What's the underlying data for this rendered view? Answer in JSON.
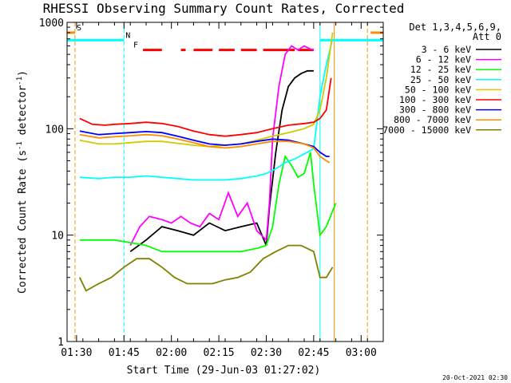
{
  "chart_data": {
    "type": "line",
    "title": "RHESSI Observing Summary Count Rates, Corrected",
    "xlabel": "Start Time (29-Jun-03 01:27:02)",
    "ylabel_main": "Corrected Count Rate (s",
    "ylabel_sup1": "-1",
    "ylabel_mid": " detector",
    "ylabel_sup2": "-1",
    "ylabel_end": ")",
    "y_scale": "log",
    "ylim": [
      1,
      1000
    ],
    "xlim_minutes": [
      0,
      100
    ],
    "x_ticks": [
      {
        "label": "01:30",
        "min": 3
      },
      {
        "label": "01:45",
        "min": 18
      },
      {
        "label": "02:00",
        "min": 33
      },
      {
        "label": "02:15",
        "min": 48
      },
      {
        "label": "02:30",
        "min": 63
      },
      {
        "label": "02:45",
        "min": 78
      },
      {
        "label": "03:00",
        "min": 93
      }
    ],
    "y_ticks": [
      {
        "label": "1",
        "value": 1
      },
      {
        "label": "10",
        "value": 10
      },
      {
        "label": "100",
        "value": 100
      },
      {
        "label": "1000",
        "value": 1000
      }
    ],
    "legend_header": [
      "Det 1,3,4,5,6,9,",
      "Att 0"
    ],
    "legend_position": "right",
    "series": [
      {
        "name": "3 - 6 keV",
        "color": "#000000",
        "points": [
          [
            20,
            7
          ],
          [
            25,
            9
          ],
          [
            30,
            12
          ],
          [
            35,
            11
          ],
          [
            40,
            10
          ],
          [
            45,
            13
          ],
          [
            50,
            11
          ],
          [
            55,
            12
          ],
          [
            60,
            13
          ],
          [
            63,
            8
          ],
          [
            64,
            18
          ],
          [
            66,
            60
          ],
          [
            68,
            150
          ],
          [
            70,
            250
          ],
          [
            72,
            300
          ],
          [
            74,
            330
          ],
          [
            76,
            350
          ],
          [
            78,
            350
          ]
        ]
      },
      {
        "name": "6 - 12 keV",
        "color": "#ff00ff",
        "points": [
          [
            20,
            8
          ],
          [
            23,
            12
          ],
          [
            26,
            15
          ],
          [
            30,
            14
          ],
          [
            33,
            13
          ],
          [
            36,
            15
          ],
          [
            39,
            13
          ],
          [
            42,
            12
          ],
          [
            45,
            16
          ],
          [
            48,
            14
          ],
          [
            51,
            25
          ],
          [
            54,
            15
          ],
          [
            57,
            20
          ],
          [
            60,
            11
          ],
          [
            63,
            9
          ],
          [
            64,
            20
          ],
          [
            65,
            80
          ],
          [
            67,
            250
          ],
          [
            69,
            500
          ],
          [
            71,
            600
          ],
          [
            73,
            550
          ],
          [
            75,
            600
          ],
          [
            77,
            560
          ],
          [
            78,
            550
          ]
        ]
      },
      {
        "name": "12 - 25 keV",
        "color": "#00ff00",
        "points": [
          [
            4,
            9
          ],
          [
            10,
            9
          ],
          [
            15,
            9
          ],
          [
            20,
            8.5
          ],
          [
            25,
            8
          ],
          [
            30,
            7
          ],
          [
            35,
            7
          ],
          [
            40,
            7
          ],
          [
            45,
            7
          ],
          [
            50,
            7
          ],
          [
            55,
            7
          ],
          [
            60,
            7.5
          ],
          [
            63,
            8
          ],
          [
            65,
            12
          ],
          [
            67,
            30
          ],
          [
            69,
            55
          ],
          [
            71,
            45
          ],
          [
            73,
            35
          ],
          [
            75,
            38
          ],
          [
            77,
            60
          ],
          [
            78,
            30
          ],
          [
            80,
            10
          ],
          [
            82,
            12
          ],
          [
            85,
            20
          ]
        ]
      },
      {
        "name": "25 - 50 keV",
        "color": "#00ffff",
        "points": [
          [
            4,
            35
          ],
          [
            10,
            34
          ],
          [
            15,
            35
          ],
          [
            20,
            35
          ],
          [
            25,
            36
          ],
          [
            30,
            35
          ],
          [
            35,
            34
          ],
          [
            40,
            33
          ],
          [
            45,
            33
          ],
          [
            50,
            33
          ],
          [
            55,
            34
          ],
          [
            60,
            36
          ],
          [
            63,
            38
          ],
          [
            66,
            42
          ],
          [
            69,
            48
          ],
          [
            72,
            52
          ],
          [
            75,
            58
          ],
          [
            78,
            65
          ],
          [
            80,
            200
          ],
          [
            82,
            400
          ],
          [
            84,
            700
          ]
        ]
      },
      {
        "name": "50 - 100 keV",
        "color": "#d4c800",
        "points": [
          [
            4,
            78
          ],
          [
            10,
            72
          ],
          [
            15,
            72
          ],
          [
            20,
            74
          ],
          [
            25,
            76
          ],
          [
            30,
            76
          ],
          [
            35,
            73
          ],
          [
            40,
            70
          ],
          [
            45,
            68
          ],
          [
            50,
            70
          ],
          [
            55,
            72
          ],
          [
            60,
            78
          ],
          [
            65,
            85
          ],
          [
            70,
            92
          ],
          [
            75,
            100
          ],
          [
            78,
            110
          ],
          [
            80,
            150
          ],
          [
            82,
            300
          ],
          [
            84,
            800
          ]
        ]
      },
      {
        "name": "100 - 300 keV",
        "color": "#ff0000",
        "points": [
          [
            4,
            125
          ],
          [
            8,
            110
          ],
          [
            12,
            108
          ],
          [
            15,
            110
          ],
          [
            20,
            112
          ],
          [
            25,
            115
          ],
          [
            30,
            112
          ],
          [
            35,
            105
          ],
          [
            40,
            95
          ],
          [
            45,
            88
          ],
          [
            50,
            85
          ],
          [
            55,
            88
          ],
          [
            60,
            92
          ],
          [
            65,
            100
          ],
          [
            70,
            108
          ],
          [
            75,
            112
          ],
          [
            78,
            115
          ],
          [
            80,
            125
          ],
          [
            82,
            150
          ],
          [
            83.5,
            300
          ]
        ]
      },
      {
        "name": "300 - 800 keV",
        "color": "#0000ff",
        "points": [
          [
            4,
            95
          ],
          [
            10,
            88
          ],
          [
            15,
            90
          ],
          [
            20,
            92
          ],
          [
            25,
            94
          ],
          [
            30,
            92
          ],
          [
            35,
            85
          ],
          [
            40,
            78
          ],
          [
            45,
            72
          ],
          [
            50,
            70
          ],
          [
            55,
            72
          ],
          [
            60,
            76
          ],
          [
            65,
            80
          ],
          [
            70,
            78
          ],
          [
            75,
            72
          ],
          [
            78,
            68
          ],
          [
            80,
            60
          ],
          [
            82,
            55
          ],
          [
            83,
            55
          ]
        ]
      },
      {
        "name": "800 - 7000 keV",
        "color": "#ff8c00",
        "points": [
          [
            4,
            88
          ],
          [
            10,
            82
          ],
          [
            15,
            84
          ],
          [
            20,
            86
          ],
          [
            25,
            88
          ],
          [
            30,
            86
          ],
          [
            35,
            80
          ],
          [
            40,
            74
          ],
          [
            45,
            68
          ],
          [
            50,
            66
          ],
          [
            55,
            68
          ],
          [
            60,
            72
          ],
          [
            65,
            76
          ],
          [
            70,
            76
          ],
          [
            75,
            72
          ],
          [
            78,
            66
          ],
          [
            80,
            55
          ],
          [
            82,
            50
          ],
          [
            83,
            48
          ]
        ]
      },
      {
        "name": "7000 - 15000 keV",
        "color": "#808000",
        "points": [
          [
            4,
            4
          ],
          [
            6,
            3
          ],
          [
            10,
            3.5
          ],
          [
            14,
            4
          ],
          [
            18,
            5
          ],
          [
            22,
            6
          ],
          [
            26,
            6
          ],
          [
            30,
            5
          ],
          [
            34,
            4
          ],
          [
            38,
            3.5
          ],
          [
            42,
            3.5
          ],
          [
            46,
            3.5
          ],
          [
            50,
            3.8
          ],
          [
            54,
            4
          ],
          [
            58,
            4.5
          ],
          [
            62,
            6
          ],
          [
            66,
            7
          ],
          [
            70,
            8
          ],
          [
            74,
            8
          ],
          [
            78,
            7
          ],
          [
            80,
            4
          ],
          [
            82,
            4
          ],
          [
            84,
            5
          ]
        ]
      }
    ],
    "vlines": [
      {
        "min": 2.5,
        "color": "#ff8c00",
        "dash": true
      },
      {
        "min": 18,
        "color": "#00ffff",
        "dash": true
      },
      {
        "min": 80,
        "color": "#00ffff",
        "dash": false
      },
      {
        "min": 84.5,
        "color": "#ff8c00",
        "dash": false
      },
      {
        "min": 95,
        "color": "#ff8c00",
        "dash": true
      }
    ],
    "status_bars": [
      {
        "label": "S",
        "color": "#ff8c00",
        "y_value": 800,
        "segments": [
          [
            0,
            2.5
          ],
          [
            96,
            100
          ]
        ]
      },
      {
        "label": "N",
        "color": "#00ffff",
        "y_value": 680,
        "segments": [
          [
            0,
            18
          ],
          [
            80,
            100
          ]
        ]
      },
      {
        "label": "F",
        "color": "#ff0000",
        "y_value": 550,
        "segments": [
          [
            24,
            30
          ],
          [
            36,
            37.5
          ],
          [
            40,
            46
          ],
          [
            48,
            53
          ],
          [
            55,
            60
          ],
          [
            62,
            72
          ],
          [
            73,
            78
          ]
        ]
      }
    ],
    "timestamp": "20-Oct-2021 02:30"
  }
}
